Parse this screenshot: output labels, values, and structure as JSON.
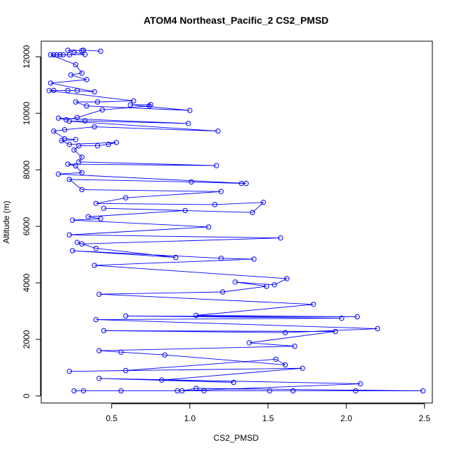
{
  "chart_data": {
    "type": "line",
    "title": "ATOM4 Northeast_Pacific_2 CS2_PMSD",
    "xlabel": "CS2_PMSD",
    "ylabel": "Altitude (m)",
    "xlim": [
      0.05,
      2.55
    ],
    "ylim": [
      -250,
      12550
    ],
    "xticks": [
      0.5,
      1.0,
      1.5,
      2.0,
      2.5
    ],
    "xtick_labels": [
      "0.5",
      "1.0",
      "1.5",
      "2.0",
      "2.5"
    ],
    "yticks": [
      0,
      2000,
      4000,
      6000,
      8000,
      10000,
      12000
    ],
    "ytick_labels": [
      "0",
      "2000",
      "4000",
      "6000",
      "8000",
      "10000",
      "12000"
    ],
    "grid": false,
    "color": "#0000ff",
    "marker": "open-circle",
    "series": [
      {
        "points": [
          [
            0.26,
            180
          ],
          [
            0.32,
            180
          ],
          [
            0.56,
            180
          ],
          [
            0.92,
            180
          ],
          [
            1.09,
            180
          ],
          [
            1.51,
            180
          ],
          [
            1.66,
            180
          ],
          [
            2.06,
            180
          ],
          [
            2.49,
            180
          ],
          [
            1.04,
            270
          ],
          [
            0.95,
            180
          ],
          [
            2.09,
            430
          ],
          [
            0.42,
            620
          ],
          [
            1.28,
            480
          ],
          [
            0.82,
            560
          ],
          [
            1.72,
            980
          ],
          [
            0.23,
            870
          ],
          [
            0.59,
            900
          ],
          [
            1.55,
            1300
          ],
          [
            1.61,
            1100
          ],
          [
            0.84,
            1450
          ],
          [
            0.56,
            1550
          ],
          [
            0.42,
            1600
          ],
          [
            1.67,
            1760
          ],
          [
            1.38,
            1880
          ],
          [
            1.93,
            2280
          ],
          [
            0.45,
            2310
          ],
          [
            1.61,
            2240
          ],
          [
            2.2,
            2380
          ],
          [
            0.4,
            2700
          ],
          [
            1.97,
            2750
          ],
          [
            0.59,
            2830
          ],
          [
            2.07,
            2800
          ],
          [
            1.04,
            2850
          ],
          [
            1.79,
            3240
          ],
          [
            0.42,
            3600
          ],
          [
            1.21,
            3680
          ],
          [
            1.49,
            3880
          ],
          [
            1.29,
            4030
          ],
          [
            1.54,
            3930
          ],
          [
            1.62,
            4150
          ],
          [
            0.39,
            4620
          ],
          [
            1.41,
            4840
          ],
          [
            1.2,
            4870
          ],
          [
            0.25,
            5140
          ],
          [
            0.91,
            4900
          ],
          [
            0.4,
            5220
          ],
          [
            0.28,
            5430
          ],
          [
            0.31,
            5380
          ],
          [
            1.58,
            5590
          ],
          [
            0.23,
            5700
          ],
          [
            1.12,
            5980
          ],
          [
            0.25,
            6220
          ],
          [
            0.43,
            6270
          ],
          [
            0.35,
            6340
          ],
          [
            0.97,
            6560
          ],
          [
            0.45,
            6640
          ],
          [
            1.4,
            6490
          ],
          [
            1.47,
            6850
          ],
          [
            1.16,
            6770
          ],
          [
            0.4,
            6810
          ],
          [
            0.59,
            7010
          ],
          [
            1.2,
            7230
          ],
          [
            0.31,
            7300
          ],
          [
            0.23,
            7660
          ],
          [
            1.01,
            7570
          ],
          [
            1.33,
            7520
          ],
          [
            1.36,
            7520
          ],
          [
            0.16,
            7850
          ],
          [
            0.31,
            7900
          ],
          [
            0.27,
            8140
          ],
          [
            0.22,
            8200
          ],
          [
            1.17,
            8150
          ],
          [
            0.29,
            8280
          ],
          [
            0.31,
            8450
          ],
          [
            0.26,
            8700
          ],
          [
            0.29,
            8850
          ],
          [
            0.41,
            8850
          ],
          [
            0.48,
            8900
          ],
          [
            0.53,
            8970
          ],
          [
            0.23,
            8900
          ],
          [
            0.18,
            9030
          ],
          [
            0.27,
            9070
          ],
          [
            0.2,
            9100
          ],
          [
            0.13,
            9370
          ],
          [
            0.2,
            9420
          ],
          [
            0.39,
            9520
          ],
          [
            1.18,
            9370
          ],
          [
            0.23,
            9720
          ],
          [
            0.33,
            9730
          ],
          [
            0.99,
            9640
          ],
          [
            0.16,
            9830
          ],
          [
            0.21,
            9770
          ],
          [
            0.28,
            9850
          ],
          [
            0.44,
            10120
          ],
          [
            0.74,
            10260
          ],
          [
            0.75,
            10310
          ],
          [
            0.62,
            10300
          ],
          [
            1.0,
            10100
          ],
          [
            0.34,
            10260
          ],
          [
            0.27,
            10400
          ],
          [
            0.41,
            10400
          ],
          [
            0.64,
            10440
          ],
          [
            0.1,
            10800
          ],
          [
            0.13,
            10810
          ],
          [
            0.22,
            10810
          ],
          [
            0.28,
            10800
          ],
          [
            0.39,
            10760
          ],
          [
            0.11,
            11070
          ],
          [
            0.34,
            11190
          ],
          [
            0.24,
            11360
          ],
          [
            0.31,
            11420
          ],
          [
            0.27,
            11720
          ],
          [
            0.11,
            12070
          ],
          [
            0.13,
            12070
          ],
          [
            0.15,
            12070
          ],
          [
            0.17,
            12070
          ],
          [
            0.19,
            12070
          ],
          [
            0.23,
            12070
          ],
          [
            0.33,
            12080
          ],
          [
            0.26,
            12170
          ],
          [
            0.22,
            12230
          ],
          [
            0.31,
            12220
          ],
          [
            0.32,
            12230
          ],
          [
            0.43,
            12200
          ]
        ]
      }
    ]
  }
}
